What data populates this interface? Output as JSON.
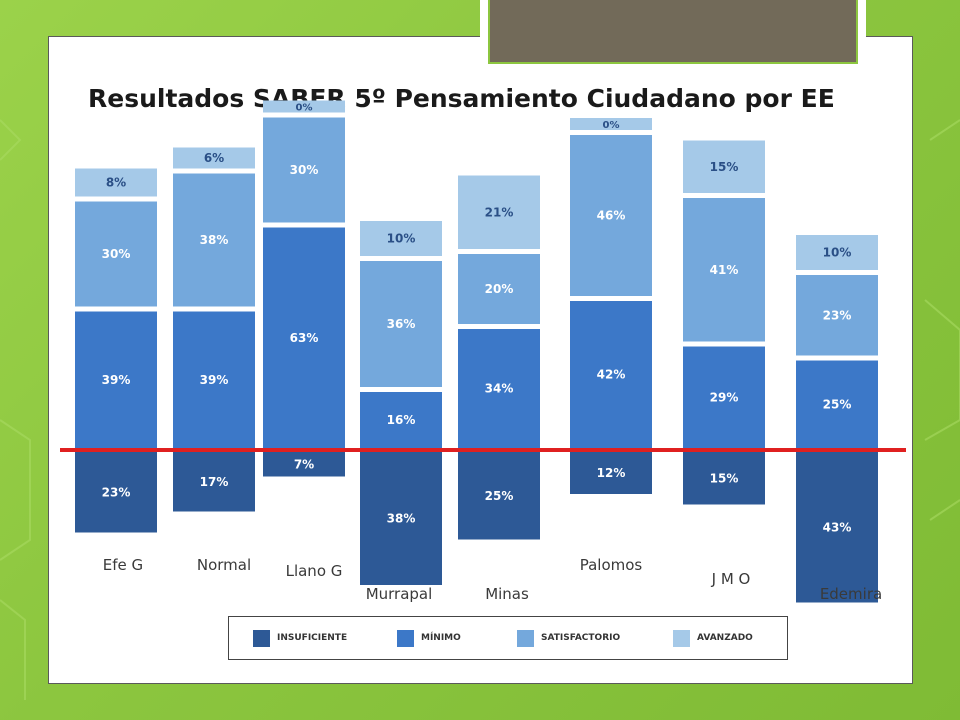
{
  "slide": {
    "title": "Resultados SABER 5º Pensamiento Ciudadano por EE"
  },
  "colors": {
    "insuficiente": "#2d5996",
    "minimo": "#3c78c8",
    "satisfactorio": "#74a8dc",
    "avanzado": "#a5c9e8",
    "reference_line": "#e02020"
  },
  "legend": [
    {
      "key": "insuficiente",
      "label": "INSUFICIENTE"
    },
    {
      "key": "minimo",
      "label": "MÍNIMO"
    },
    {
      "key": "satisfactorio",
      "label": "SATISFACTORIO"
    },
    {
      "key": "avanzado",
      "label": "AVANZADO"
    }
  ],
  "chart_data": {
    "type": "bar",
    "stacked": true,
    "reference_line": "horizontal red line at the boundary between INSUFICIENTE and MÍNIMO",
    "categories": [
      "Efe G",
      "Normal",
      "Llano G",
      "Murrapal",
      "Minas",
      "Palomos",
      "J M O",
      "Edemira"
    ],
    "series": [
      {
        "name": "INSUFICIENTE",
        "values": [
          23,
          17,
          7,
          38,
          25,
          12,
          15,
          43
        ]
      },
      {
        "name": "MÍNIMO",
        "values": [
          39,
          39,
          63,
          16,
          34,
          42,
          29,
          25
        ]
      },
      {
        "name": "SATISFACTORIO",
        "values": [
          30,
          38,
          30,
          36,
          20,
          46,
          41,
          23
        ]
      },
      {
        "name": "AVANZADO",
        "values": [
          8,
          6,
          0,
          10,
          21,
          0,
          15,
          10
        ]
      }
    ],
    "labels": [
      [
        "23%",
        "39%",
        "30%",
        "8%"
      ],
      [
        "17%",
        "39%",
        "38%",
        "6%"
      ],
      [
        "7%",
        "63%",
        "30%",
        "0%"
      ],
      [
        "38%",
        "16%",
        "36%",
        "10%"
      ],
      [
        "25%",
        "34%",
        "20%",
        "21%"
      ],
      [
        "12%",
        "42%",
        "46%",
        "0%"
      ],
      [
        "15%",
        "29%",
        "41%",
        "15%"
      ],
      [
        "43%",
        "25%",
        "23%",
        "10%"
      ]
    ]
  }
}
